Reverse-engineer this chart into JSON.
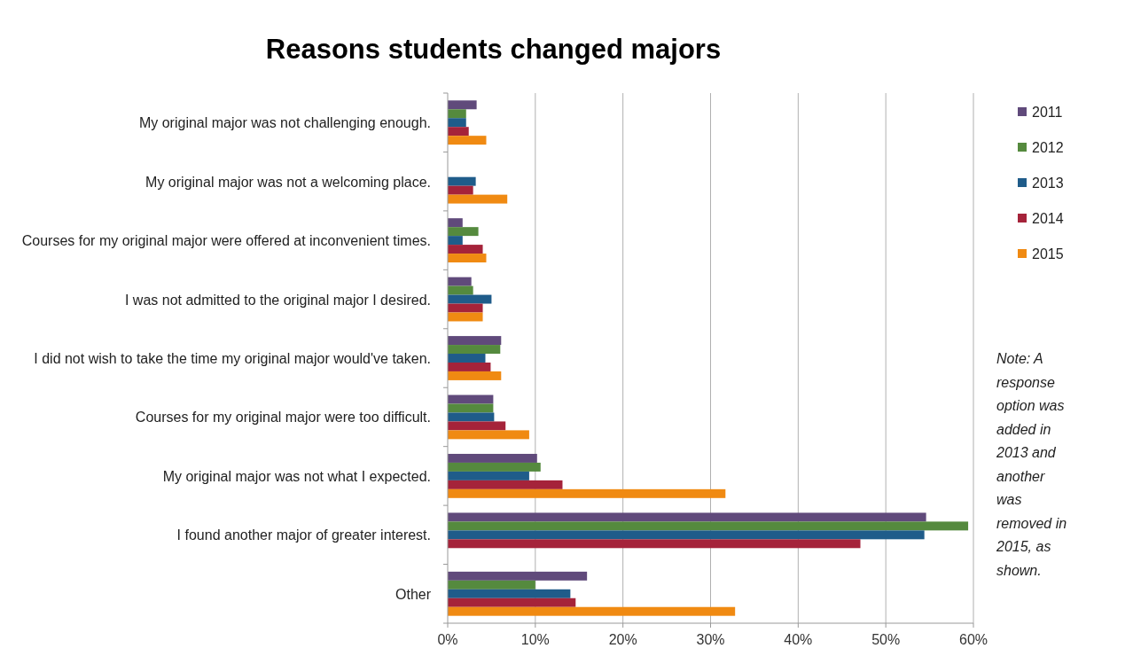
{
  "chart_data": {
    "type": "bar",
    "orientation": "horizontal",
    "title": "Reasons students changed majors",
    "categories": [
      "My original major was not challenging enough.",
      "My original major was not a welcoming place.",
      "Courses for my original major were offered at inconvenient times.",
      "I was not admitted to the original major I desired.",
      "I did not wish to take the time my original major would've taken.",
      "Courses for my original major were too difficult.",
      "My original major was not what I expected.",
      "I found another major of greater interest.",
      "Other"
    ],
    "series": [
      {
        "name": "2011",
        "color": "#604a7b",
        "values": [
          3.3,
          null,
          1.7,
          2.7,
          6.1,
          5.2,
          10.2,
          54.6,
          15.9
        ]
      },
      {
        "name": "2012",
        "color": "#558a3e",
        "values": [
          2.1,
          null,
          3.5,
          2.9,
          6.0,
          5.2,
          10.6,
          59.4,
          10.0
        ]
      },
      {
        "name": "2013",
        "color": "#1f5c8a",
        "values": [
          2.1,
          3.2,
          1.7,
          5.0,
          4.3,
          5.3,
          9.3,
          54.4,
          14.0
        ]
      },
      {
        "name": "2014",
        "color": "#a5233a",
        "values": [
          2.4,
          2.9,
          4.0,
          4.0,
          4.9,
          6.6,
          13.1,
          47.1,
          14.6
        ]
      },
      {
        "name": "2015",
        "color": "#f08a12",
        "values": [
          4.4,
          6.8,
          4.4,
          4.0,
          6.1,
          9.3,
          31.7,
          null,
          32.8
        ]
      }
    ],
    "xlim": [
      0,
      60
    ],
    "xticks": [
      {
        "value": 0,
        "label": "0%"
      },
      {
        "value": 10,
        "label": "10%"
      },
      {
        "value": 20,
        "label": "20%"
      },
      {
        "value": 30,
        "label": "30%"
      },
      {
        "value": 40,
        "label": "40%"
      },
      {
        "value": 50,
        "label": "50%"
      },
      {
        "value": 60,
        "label": "60%"
      }
    ],
    "grid": "x",
    "legend": "right",
    "annotations": [
      "Note: A response option was added in 2013 and another was removed in 2015, as shown."
    ]
  }
}
